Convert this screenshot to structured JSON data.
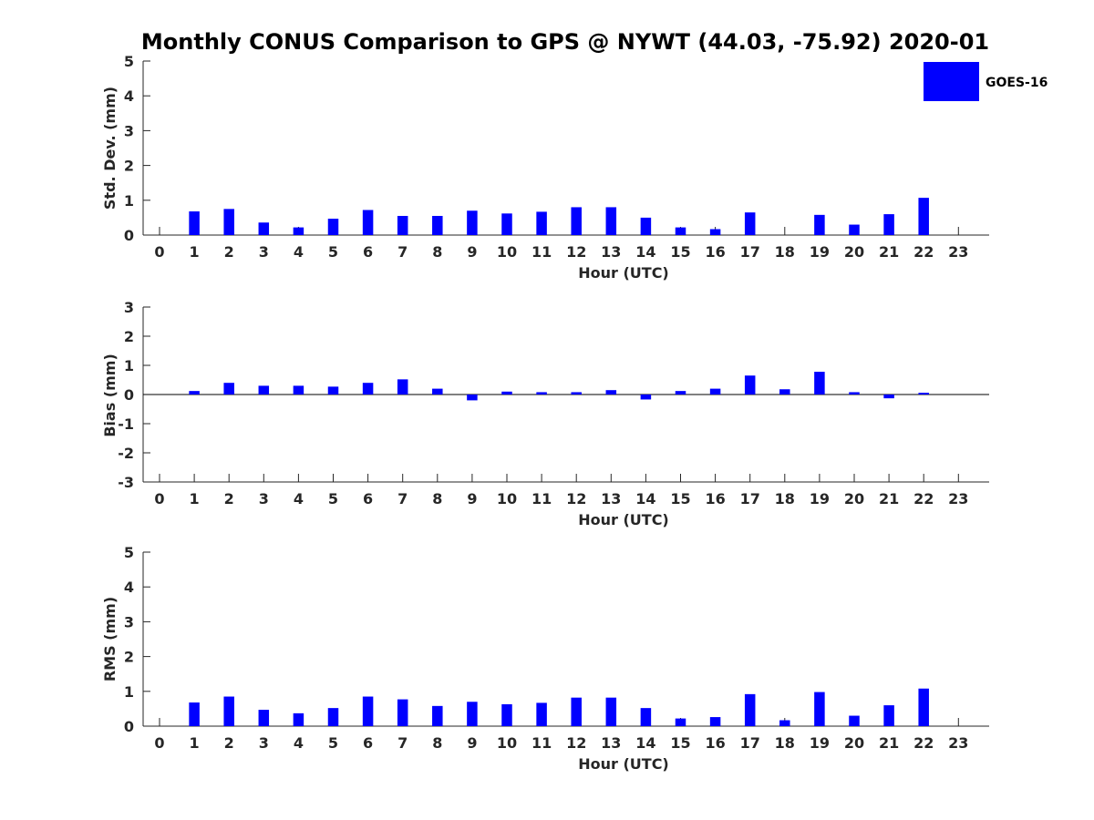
{
  "title": "Monthly CONUS Comparison to GPS @ NYWT (44.03, -75.92) 2020-01",
  "legend": {
    "label": "GOES-16",
    "color": "#0000ff",
    "placement": "top-right"
  },
  "bar_color": "#0000ff",
  "chart_data": [
    {
      "type": "bar",
      "ylabel": "Std. Dev. (mm)",
      "xlabel": "Hour (UTC)",
      "categories": [
        "0",
        "1",
        "2",
        "3",
        "4",
        "5",
        "6",
        "7",
        "8",
        "9",
        "10",
        "11",
        "12",
        "13",
        "14",
        "15",
        "16",
        "17",
        "18",
        "19",
        "20",
        "21",
        "22",
        "23"
      ],
      "series": [
        {
          "name": "GOES-16",
          "values": [
            0,
            0.68,
            0.75,
            0.36,
            0.22,
            0.47,
            0.72,
            0.55,
            0.55,
            0.7,
            0.62,
            0.67,
            0.8,
            0.8,
            0.5,
            0.22,
            0.17,
            0.65,
            0,
            0.58,
            0.3,
            0.6,
            1.07,
            0
          ]
        }
      ],
      "ylim": [
        0,
        5
      ],
      "yticks": [
        0,
        1,
        2,
        3,
        4,
        5
      ],
      "grid": false
    },
    {
      "type": "bar",
      "ylabel": "Bias (mm)",
      "xlabel": "Hour (UTC)",
      "categories": [
        "0",
        "1",
        "2",
        "3",
        "4",
        "5",
        "6",
        "7",
        "8",
        "9",
        "10",
        "11",
        "12",
        "13",
        "14",
        "15",
        "16",
        "17",
        "18",
        "19",
        "20",
        "21",
        "22",
        "23"
      ],
      "series": [
        {
          "name": "GOES-16",
          "values": [
            0,
            0.12,
            0.4,
            0.3,
            0.3,
            0.27,
            0.4,
            0.52,
            0.2,
            -0.2,
            0.1,
            0.08,
            0.08,
            0.15,
            -0.17,
            0.12,
            0.2,
            0.65,
            0.18,
            0.78,
            0.08,
            -0.13,
            0.06,
            0
          ]
        }
      ],
      "ylim": [
        -3,
        3
      ],
      "yticks": [
        -3,
        -2,
        -1,
        0,
        1,
        2,
        3
      ],
      "grid": false
    },
    {
      "type": "bar",
      "ylabel": "RMS (mm)",
      "xlabel": "Hour (UTC)",
      "categories": [
        "0",
        "1",
        "2",
        "3",
        "4",
        "5",
        "6",
        "7",
        "8",
        "9",
        "10",
        "11",
        "12",
        "13",
        "14",
        "15",
        "16",
        "17",
        "18",
        "19",
        "20",
        "21",
        "22",
        "23"
      ],
      "series": [
        {
          "name": "GOES-16",
          "values": [
            0,
            0.68,
            0.85,
            0.47,
            0.37,
            0.52,
            0.85,
            0.77,
            0.58,
            0.7,
            0.63,
            0.67,
            0.82,
            0.82,
            0.52,
            0.22,
            0.26,
            0.92,
            0.17,
            0.98,
            0.3,
            0.6,
            1.08,
            0
          ]
        }
      ],
      "ylim": [
        0,
        5
      ],
      "yticks": [
        0,
        1,
        2,
        3,
        4,
        5
      ],
      "grid": false
    }
  ]
}
